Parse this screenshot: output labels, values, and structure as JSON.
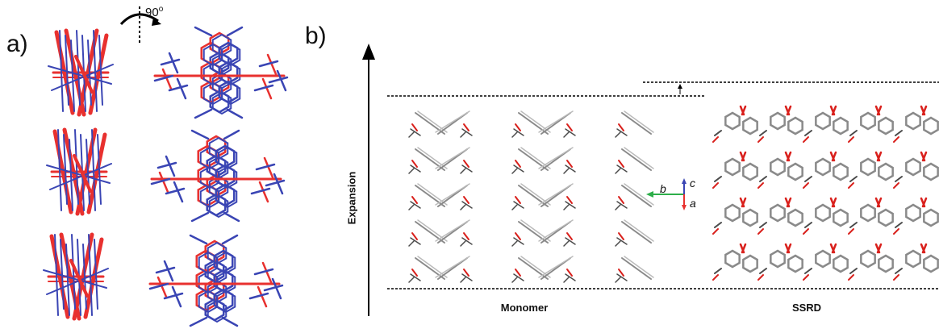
{
  "panel_a": {
    "label": "a)",
    "rotation_label": "90",
    "rotation_unit": "o",
    "colors": {
      "red": "#e8312f",
      "blue": "#3a45b4"
    }
  },
  "panel_b": {
    "label": "b)",
    "expansion_label": "Expansion",
    "monomer_label": "Monomer",
    "ssrd_label": "SSRD",
    "axes": {
      "b": "b",
      "c": "c",
      "a": "a"
    },
    "axis_colors": {
      "b": "#2eae4a",
      "c": "#3a45b4",
      "a": "#e8312f"
    }
  }
}
